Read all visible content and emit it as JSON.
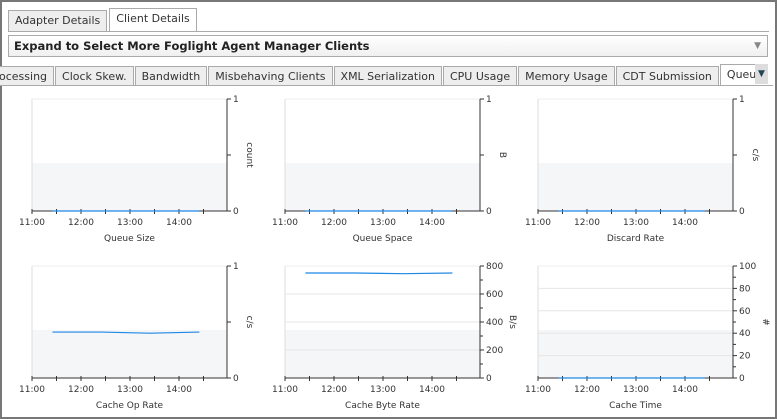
{
  "tabs": [
    {
      "label": "Adapter Details",
      "active": false
    },
    {
      "label": "Client Details",
      "active": true
    }
  ],
  "client_select": {
    "value": "Expand to Select More Foglight Agent Manager Clients"
  },
  "subtabs": [
    {
      "label": "ocessing"
    },
    {
      "label": "Clock Skew."
    },
    {
      "label": "Bandwidth"
    },
    {
      "label": "Misbehaving Clients"
    },
    {
      "label": "XML Serialization"
    },
    {
      "label": "CPU Usage"
    },
    {
      "label": "Memory Usage"
    },
    {
      "label": "CDT Submission"
    },
    {
      "label": "Queue Utilization",
      "active": true
    }
  ],
  "colors": {
    "line": "#1e88e5",
    "band": "#f5f6f8"
  },
  "chart_data": [
    {
      "type": "line",
      "title": "Queue Size",
      "ylabel": "count",
      "ylim": [
        0,
        1
      ],
      "yticks": [
        "0",
        "1"
      ],
      "xticks": [
        "11:00",
        "12:00",
        "13:00",
        "14:00"
      ],
      "x": [
        "11:25",
        "12:25",
        "13:25",
        "14:25"
      ],
      "values": [
        0,
        0,
        0,
        0
      ]
    },
    {
      "type": "line",
      "title": "Queue Space",
      "ylabel": "B",
      "ylim": [
        0,
        1
      ],
      "yticks": [
        "0",
        "1"
      ],
      "xticks": [
        "11:00",
        "12:00",
        "13:00",
        "14:00"
      ],
      "x": [
        "11:25",
        "12:25",
        "13:25",
        "14:25"
      ],
      "values": [
        0,
        0,
        0,
        0
      ]
    },
    {
      "type": "line",
      "title": "Discard Rate",
      "ylabel": "c/s",
      "ylim": [
        0,
        1
      ],
      "yticks": [
        "0",
        "1"
      ],
      "xticks": [
        "11:00",
        "12:00",
        "13:00",
        "14:00"
      ],
      "x": [
        "11:25",
        "12:25",
        "13:25",
        "14:25"
      ],
      "values": [
        0,
        0,
        0,
        0
      ]
    },
    {
      "type": "line",
      "title": "Cache Op Rate",
      "ylabel": "c/s",
      "ylim": [
        0,
        1
      ],
      "yticks": [
        "0",
        "1"
      ],
      "xticks": [
        "11:00",
        "12:00",
        "13:00",
        "14:00"
      ],
      "x": [
        "11:25",
        "12:25",
        "13:25",
        "14:25"
      ],
      "values": [
        0.41,
        0.41,
        0.4,
        0.41
      ]
    },
    {
      "type": "line",
      "title": "Cache Byte Rate",
      "ylabel": "B/s",
      "ylim": [
        0,
        800
      ],
      "yticks": [
        "0",
        "200",
        "400",
        "600",
        "800"
      ],
      "xticks": [
        "11:00",
        "12:00",
        "13:00",
        "14:00"
      ],
      "x": [
        "11:25",
        "12:25",
        "13:25",
        "14:25"
      ],
      "values": [
        750,
        750,
        745,
        750
      ]
    },
    {
      "type": "line",
      "title": "Cache Time",
      "ylabel": "#",
      "ylim": [
        0,
        100
      ],
      "yticks": [
        "0",
        "20",
        "40",
        "60",
        "80",
        "100"
      ],
      "xticks": [
        "11:00",
        "12:00",
        "13:00",
        "14:00"
      ],
      "x": [
        "11:25",
        "12:25",
        "13:25",
        "14:25"
      ],
      "values": [
        0,
        0,
        0,
        0
      ]
    }
  ]
}
